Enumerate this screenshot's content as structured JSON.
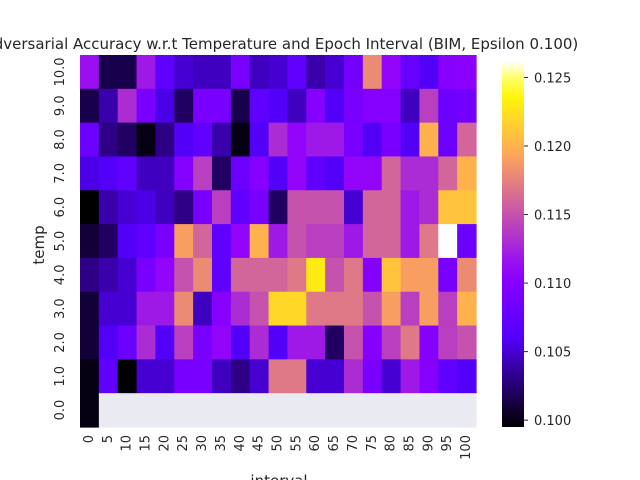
{
  "chart_data": {
    "type": "heatmap",
    "title": "dversarial Accuracy w.r.t Temperature and Epoch Interval (BIM, Epsilon 0.100)",
    "xlabel": "interval",
    "ylabel": "temp",
    "x_categories": [
      "0",
      "5",
      "10",
      "15",
      "20",
      "25",
      "30",
      "35",
      "40",
      "45",
      "50",
      "55",
      "60",
      "65",
      "70",
      "75",
      "80",
      "85",
      "90",
      "95",
      "100"
    ],
    "y_categories": [
      "10.0",
      "9.0",
      "8.0",
      "7.0",
      "6.0",
      "5.0",
      "4.0",
      "3.0",
      "2.0",
      "1.0",
      "0.0"
    ],
    "colorbar": {
      "min": 0.0995,
      "max": 0.1262,
      "ticks": [
        "0.100",
        "0.105",
        "0.110",
        "0.115",
        "0.120",
        "0.125"
      ],
      "colormap": "gnuplot2"
    },
    "missing_color": "#eaeaf2",
    "values": [
      [
        0.1115,
        0.1015,
        0.1015,
        0.112,
        0.107,
        0.105,
        0.1045,
        0.1045,
        0.109,
        0.1045,
        0.105,
        0.107,
        0.104,
        0.105,
        0.1085,
        0.118,
        0.111,
        0.1075,
        0.106,
        0.11,
        0.1105
      ],
      [
        0.1015,
        0.104,
        0.113,
        0.109,
        0.1055,
        0.102,
        0.109,
        0.109,
        0.1015,
        0.107,
        0.106,
        0.1045,
        0.11,
        0.106,
        0.109,
        0.11,
        0.11,
        0.1045,
        0.114,
        0.108,
        0.1085
      ],
      [
        0.108,
        0.103,
        0.102,
        0.1,
        0.103,
        0.106,
        0.107,
        0.104,
        0.1,
        0.106,
        0.113,
        0.111,
        0.112,
        0.112,
        0.109,
        0.106,
        0.109,
        0.106,
        0.12,
        0.108,
        0.116
      ],
      [
        0.1055,
        0.106,
        0.107,
        0.1045,
        0.1045,
        0.11,
        0.114,
        0.102,
        0.108,
        0.11,
        0.106,
        0.111,
        0.107,
        0.106,
        0.111,
        0.111,
        0.116,
        0.113,
        0.113,
        0.116,
        0.12
      ],
      [
        0.0995,
        0.104,
        0.105,
        0.1055,
        0.1045,
        0.103,
        0.109,
        0.114,
        0.107,
        0.109,
        0.102,
        0.115,
        0.115,
        0.115,
        0.105,
        0.116,
        0.116,
        0.112,
        0.113,
        0.121,
        0.121
      ],
      [
        0.101,
        0.102,
        0.106,
        0.107,
        0.109,
        0.119,
        0.116,
        0.107,
        0.111,
        0.12,
        0.112,
        0.115,
        0.114,
        0.114,
        0.112,
        0.116,
        0.116,
        0.112,
        0.117,
        0.1262,
        0.108
      ],
      [
        0.103,
        0.104,
        0.105,
        0.109,
        0.111,
        0.115,
        0.118,
        0.107,
        0.116,
        0.116,
        0.116,
        0.117,
        0.123,
        0.115,
        0.117,
        0.11,
        0.121,
        0.119,
        0.119,
        0.109,
        0.118
      ],
      [
        0.101,
        0.105,
        0.105,
        0.112,
        0.112,
        0.118,
        0.1045,
        0.11,
        0.113,
        0.115,
        0.122,
        0.122,
        0.117,
        0.117,
        0.117,
        0.115,
        0.119,
        0.114,
        0.119,
        0.114,
        0.12
      ],
      [
        0.101,
        0.106,
        0.108,
        0.113,
        0.106,
        0.114,
        0.109,
        0.111,
        0.106,
        0.113,
        0.106,
        0.112,
        0.112,
        0.102,
        0.115,
        0.11,
        0.114,
        0.117,
        0.11,
        0.114,
        0.115
      ],
      [
        0.1,
        0.107,
        0.0995,
        0.105,
        0.105,
        0.109,
        0.109,
        0.1045,
        0.103,
        0.105,
        0.117,
        0.117,
        0.105,
        0.105,
        0.113,
        0.109,
        0.105,
        0.112,
        0.11,
        0.107,
        0.106
      ],
      [
        0.1,
        null,
        null,
        null,
        null,
        null,
        null,
        null,
        null,
        null,
        null,
        null,
        null,
        null,
        null,
        null,
        null,
        null,
        null,
        null,
        null
      ]
    ]
  }
}
